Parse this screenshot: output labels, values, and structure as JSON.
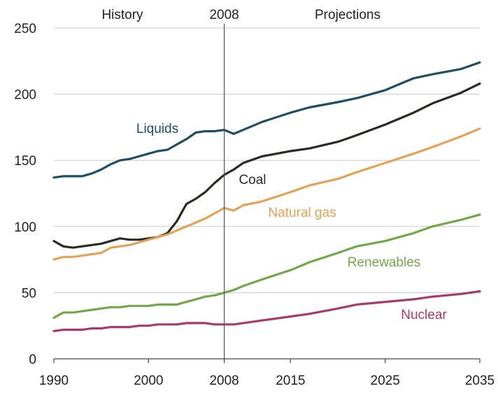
{
  "chart_data": {
    "type": "line",
    "title": "",
    "xlabel": "",
    "ylabel": "",
    "xlim": [
      1990,
      2035
    ],
    "ylim": [
      0,
      250
    ],
    "yticks": [
      0,
      50,
      100,
      150,
      200,
      250
    ],
    "xticks": [
      1990,
      2000,
      2008,
      2015,
      2025,
      2035
    ],
    "grid": "horizontal",
    "divider": {
      "x": 2008,
      "label": "2008"
    },
    "period_labels": {
      "left": "History",
      "right": "Projections"
    },
    "series": [
      {
        "name": "Liquids",
        "color": "#1f4e5f",
        "x": [
          1990,
          1991,
          1992,
          1993,
          1994,
          1995,
          1996,
          1997,
          1998,
          1999,
          2000,
          2001,
          2002,
          2003,
          2004,
          2005,
          2006,
          2007,
          2008,
          2009,
          2010,
          2012,
          2015,
          2017,
          2020,
          2022,
          2025,
          2028,
          2030,
          2033,
          2035
        ],
        "values": [
          137,
          138,
          138,
          138,
          140,
          143,
          147,
          150,
          151,
          153,
          155,
          157,
          158,
          162,
          166,
          171,
          172,
          172,
          173,
          170,
          173,
          179,
          186,
          190,
          194,
          197,
          203,
          212,
          215,
          219,
          224
        ]
      },
      {
        "name": "Coal",
        "color": "#2b2a24",
        "x": [
          1990,
          1991,
          1992,
          1993,
          1994,
          1995,
          1996,
          1997,
          1998,
          1999,
          2000,
          2001,
          2002,
          2003,
          2004,
          2005,
          2006,
          2007,
          2008,
          2009,
          2010,
          2012,
          2015,
          2017,
          2020,
          2022,
          2025,
          2028,
          2030,
          2033,
          2035
        ],
        "values": [
          89,
          85,
          84,
          85,
          86,
          87,
          89,
          91,
          90,
          90,
          91,
          92,
          95,
          104,
          117,
          121,
          126,
          133,
          139,
          143,
          148,
          153,
          157,
          159,
          164,
          169,
          177,
          186,
          193,
          201,
          208
        ]
      },
      {
        "name": "Natural gas",
        "color": "#e3a255",
        "x": [
          1990,
          1991,
          1992,
          1993,
          1994,
          1995,
          1996,
          1997,
          1998,
          1999,
          2000,
          2001,
          2002,
          2003,
          2004,
          2005,
          2006,
          2007,
          2008,
          2009,
          2010,
          2012,
          2015,
          2017,
          2020,
          2022,
          2025,
          2028,
          2030,
          2033,
          2035
        ],
        "values": [
          75,
          77,
          77,
          78,
          79,
          80,
          84,
          85,
          86,
          88,
          90,
          92,
          94,
          97,
          100,
          103,
          106,
          110,
          114,
          112,
          116,
          119,
          126,
          131,
          136,
          141,
          148,
          155,
          160,
          168,
          174
        ]
      },
      {
        "name": "Renewables",
        "color": "#74a64a",
        "x": [
          1990,
          1991,
          1992,
          1993,
          1994,
          1995,
          1996,
          1997,
          1998,
          1999,
          2000,
          2001,
          2002,
          2003,
          2004,
          2005,
          2006,
          2007,
          2008,
          2009,
          2010,
          2012,
          2015,
          2017,
          2020,
          2022,
          2025,
          2028,
          2030,
          2033,
          2035
        ],
        "values": [
          31,
          35,
          35,
          36,
          37,
          38,
          39,
          39,
          40,
          40,
          40,
          41,
          41,
          41,
          43,
          45,
          47,
          48,
          50,
          52,
          55,
          60,
          67,
          73,
          80,
          85,
          89,
          95,
          100,
          105,
          109
        ]
      },
      {
        "name": "Nuclear",
        "color": "#a83a6a",
        "x": [
          1990,
          1991,
          1992,
          1993,
          1994,
          1995,
          1996,
          1997,
          1998,
          1999,
          2000,
          2001,
          2002,
          2003,
          2004,
          2005,
          2006,
          2007,
          2008,
          2009,
          2010,
          2012,
          2015,
          2017,
          2020,
          2022,
          2025,
          2028,
          2030,
          2033,
          2035
        ],
        "values": [
          21,
          22,
          22,
          22,
          23,
          23,
          24,
          24,
          24,
          25,
          25,
          26,
          26,
          26,
          27,
          27,
          27,
          26,
          26,
          26,
          27,
          29,
          32,
          34,
          38,
          41,
          43,
          45,
          47,
          49,
          51
        ]
      }
    ]
  }
}
